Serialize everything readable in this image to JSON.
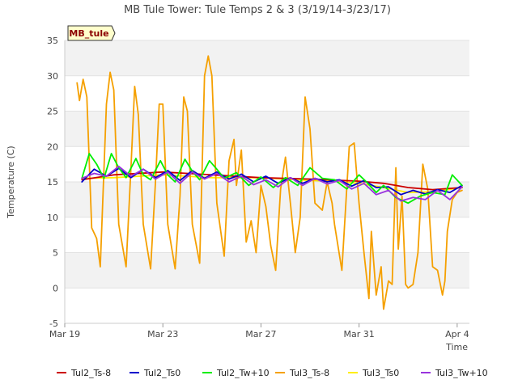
{
  "chart_data": {
    "type": "line",
    "title": "MB Tule Tower: Tule Temps 2 & 3 (3/19/14-3/23/17)",
    "badge": "MB_tule",
    "xlabel": "Time",
    "ylabel": "Temperature (C)",
    "xlim": [
      0,
      16.5
    ],
    "ylim": [
      -5,
      35
    ],
    "x_ticks": [
      {
        "value": 0,
        "label": "Mar 19"
      },
      {
        "value": 4,
        "label": "Mar 23"
      },
      {
        "value": 8,
        "label": "Mar 27"
      },
      {
        "value": 12,
        "label": "Mar 31"
      },
      {
        "value": 16,
        "label": "Apr 4"
      }
    ],
    "y_ticks": [
      -5,
      0,
      5,
      10,
      15,
      20,
      25,
      30,
      35
    ],
    "series": [
      {
        "name": "Tul2_Ts-8",
        "color": "#cc0000",
        "x": [
          0.7,
          2,
          4,
          6,
          8,
          10,
          12,
          13,
          14,
          15,
          16.2
        ],
        "y": [
          15.3,
          16.0,
          16.4,
          16.0,
          15.6,
          15.4,
          15.1,
          14.8,
          14.2,
          13.9,
          14.2
        ]
      },
      {
        "name": "Tul2_Ts0",
        "color": "#0000cc",
        "x": [
          0.7,
          1.2,
          1.7,
          2.2,
          2.7,
          3.2,
          3.7,
          4.2,
          4.7,
          5.2,
          5.7,
          6.2,
          6.7,
          7.2,
          7.7,
          8.2,
          8.7,
          9.2,
          9.7,
          10.2,
          10.7,
          11.2,
          11.7,
          12.2,
          12.7,
          13.2,
          13.7,
          14.2,
          14.7,
          15.2,
          15.7,
          16.2
        ],
        "y": [
          15.0,
          16.8,
          15.8,
          16.9,
          15.6,
          16.8,
          15.6,
          16.6,
          15.2,
          16.6,
          15.5,
          16.4,
          15.4,
          16.1,
          15.0,
          15.8,
          14.8,
          15.6,
          14.8,
          15.5,
          15.0,
          15.3,
          14.4,
          15.2,
          14.2,
          14.3,
          13.2,
          13.8,
          13.3,
          13.9,
          13.5,
          14.5
        ]
      },
      {
        "name": "Tul2_Tw+10",
        "color": "#00ee00",
        "x": [
          0.7,
          1.0,
          1.3,
          1.6,
          1.9,
          2.2,
          2.5,
          2.9,
          3.2,
          3.5,
          3.9,
          4.2,
          4.5,
          4.9,
          5.2,
          5.5,
          5.9,
          6.2,
          6.5,
          7.0,
          7.5,
          8.0,
          8.5,
          9.0,
          9.5,
          10.0,
          10.5,
          11.0,
          11.5,
          12.0,
          12.3,
          12.7,
          13.0,
          13.5,
          14.0,
          14.5,
          15.0,
          15.5,
          15.8,
          16.2
        ],
        "y": [
          15.5,
          19.0,
          17.5,
          15.5,
          19.0,
          17.0,
          15.6,
          18.3,
          16.0,
          15.3,
          18.0,
          16.0,
          15.0,
          18.2,
          16.5,
          15.3,
          18.0,
          16.8,
          15.5,
          16.3,
          14.5,
          15.7,
          14.2,
          15.6,
          14.5,
          17.0,
          15.5,
          15.3,
          14.0,
          16.0,
          15.0,
          13.5,
          14.5,
          12.8,
          12.0,
          13.0,
          13.5,
          13.2,
          16.0,
          14.5
        ]
      },
      {
        "name": "Tul3_Ts-8",
        "color": "#f5a000",
        "x": [
          0.5,
          0.6,
          0.75,
          0.9,
          1.1,
          1.3,
          1.45,
          1.7,
          1.85,
          2.0,
          2.2,
          2.5,
          2.7,
          2.85,
          3.0,
          3.2,
          3.5,
          3.7,
          3.85,
          4.0,
          4.2,
          4.5,
          4.7,
          4.85,
          5.0,
          5.2,
          5.5,
          5.7,
          5.85,
          6.0,
          6.2,
          6.5,
          6.7,
          6.9,
          7.0,
          7.2,
          7.4,
          7.6,
          7.8,
          8.0,
          8.2,
          8.4,
          8.6,
          8.8,
          9.0,
          9.2,
          9.4,
          9.6,
          9.8,
          10.0,
          10.2,
          10.5,
          10.7,
          10.9,
          11.0,
          11.3,
          11.6,
          11.8,
          12.0,
          12.2,
          12.4,
          12.5,
          12.7,
          12.9,
          13.0,
          13.2,
          13.35,
          13.5,
          13.6,
          13.75,
          13.9,
          14.0,
          14.2,
          14.4,
          14.6,
          14.8,
          15.0,
          15.2,
          15.4,
          15.5,
          15.6,
          15.8,
          16.0,
          16.2
        ],
        "y": [
          29.0,
          26.5,
          29.5,
          27.0,
          8.5,
          7.0,
          3.0,
          26.0,
          30.5,
          28.0,
          9.0,
          3.0,
          17.0,
          28.5,
          24.5,
          9.0,
          2.7,
          15.0,
          26.0,
          26.0,
          9.0,
          2.7,
          13.0,
          27.0,
          25.0,
          9.0,
          3.5,
          30.0,
          32.8,
          30.0,
          12.0,
          4.5,
          18.0,
          21.0,
          14.5,
          19.5,
          6.5,
          9.5,
          5.0,
          14.5,
          11.5,
          6.0,
          2.5,
          14.0,
          18.5,
          12.0,
          5.0,
          10.0,
          27.0,
          22.5,
          12.0,
          11.0,
          15.0,
          12.0,
          9.0,
          2.5,
          20.0,
          20.5,
          12.0,
          5.0,
          -1.5,
          8.0,
          -1.0,
          3.0,
          -3.0,
          1.0,
          0.5,
          17.0,
          5.5,
          13.0,
          0.5,
          0.0,
          0.5,
          5.0,
          17.5,
          14.0,
          3.0,
          2.5,
          -1.0,
          1.0,
          8.0,
          12.5,
          13.5,
          13.8
        ]
      },
      {
        "name": "Tul3_Ts0",
        "color": "#ffee00",
        "x": [
          0.7,
          2,
          4,
          6,
          8,
          10,
          11,
          12,
          13,
          14,
          15,
          16.2
        ],
        "y": [
          15.5,
          15.6,
          16.0,
          15.6,
          15.6,
          15.2,
          15.1,
          14.8,
          14.2,
          13.5,
          13.6,
          14.2
        ]
      },
      {
        "name": "Tul3_Tw+10",
        "color": "#9933dd",
        "x": [
          0.7,
          1.2,
          1.7,
          2.2,
          2.7,
          3.2,
          3.7,
          4.2,
          4.7,
          5.2,
          5.7,
          6.2,
          6.7,
          7.2,
          7.7,
          8.2,
          8.7,
          9.2,
          9.7,
          10.2,
          10.7,
          11.2,
          11.7,
          12.2,
          12.7,
          13.2,
          13.7,
          14.2,
          14.7,
          15.2,
          15.7,
          16.2
        ],
        "y": [
          15.5,
          16.2,
          15.8,
          17.2,
          15.8,
          16.8,
          15.4,
          16.4,
          14.8,
          16.4,
          15.4,
          16.2,
          15.0,
          15.8,
          14.6,
          15.3,
          14.3,
          15.6,
          14.5,
          15.5,
          14.7,
          15.2,
          14.0,
          14.8,
          13.2,
          13.8,
          12.3,
          12.8,
          12.5,
          13.8,
          12.5,
          14.3
        ]
      }
    ]
  }
}
